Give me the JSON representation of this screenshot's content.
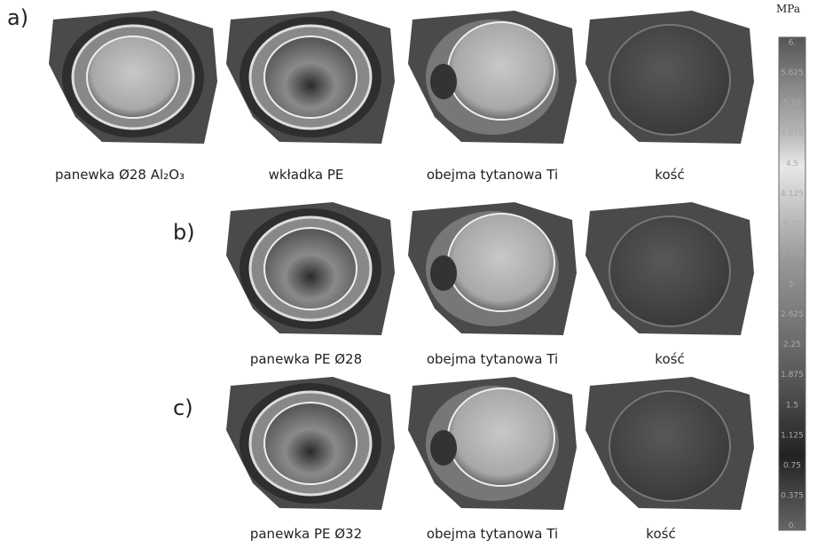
{
  "panels": [
    {
      "label": "a)",
      "captions": [
        "panewka Ø28 Al₂O₃",
        "wkładka PE",
        "obejma tytanowa Ti",
        "kość"
      ]
    },
    {
      "label": "b)",
      "captions": [
        "panewka PE Ø28",
        "obejma tytanowa Ti",
        "kość"
      ]
    },
    {
      "label": "c)",
      "captions": [
        "panewka PE Ø32",
        "obejma tytanowa Ti",
        "kość"
      ]
    }
  ],
  "scale": {
    "unit": "MPa",
    "labels": [
      "6.",
      "5.625",
      "5.25",
      "4.875",
      "4.5",
      "4.125",
      "3.75",
      "3.375",
      "3.",
      "2.625",
      "2.25",
      "1.875",
      "1.5",
      "1.125",
      "0.75",
      "0.375",
      "0."
    ]
  }
}
